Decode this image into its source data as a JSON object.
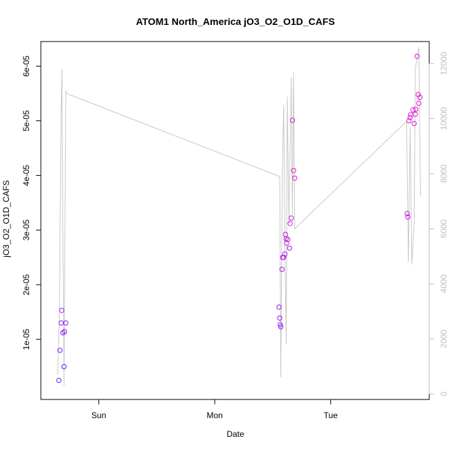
{
  "chart_data": {
    "type": "scatter",
    "title": "ATOM1 North_America jO3_O2_O1D_CAFS",
    "xlabel": "Date",
    "ylabel": "jO3_O2_O1D_CAFS",
    "x_unit": "days since Sat 00:00",
    "x_ticks": [
      {
        "label": "Sun",
        "x": 1.0
      },
      {
        "label": "Mon",
        "x": 2.0
      },
      {
        "label": "Tue",
        "x": 3.0
      }
    ],
    "xlim": [
      0.5,
      3.85
    ],
    "ylim": [
      -1e-06,
      6.45e-05
    ],
    "y_ticks": [
      {
        "label": "1e-05",
        "value": 1e-05
      },
      {
        "label": "2e-05",
        "value": 2e-05
      },
      {
        "label": "3e-05",
        "value": 3e-05
      },
      {
        "label": "4e-05",
        "value": 4e-05
      },
      {
        "label": "5e-05",
        "value": 5e-05
      },
      {
        "label": "6e-05",
        "value": 6e-05
      }
    ],
    "y2lim": [
      -200,
      12800
    ],
    "y2_ticks": [
      {
        "label": "0",
        "value": 0
      },
      {
        "label": "2000",
        "value": 2000
      },
      {
        "label": "4000",
        "value": 4000
      },
      {
        "label": "6000",
        "value": 6000
      },
      {
        "label": "8000",
        "value": 8000
      },
      {
        "label": "10000",
        "value": 10000
      },
      {
        "label": "12000",
        "value": 12000
      }
    ],
    "grid": false,
    "colors": {
      "points_low": "#6a1fff",
      "points_high": "#e014d0",
      "altitude_line": "#c8c8c8",
      "axis": "#000000",
      "right_axis": "#bebebe"
    },
    "series": [
      {
        "axis": "left",
        "style": "points",
        "points": [
          {
            "x": 0.655,
            "y": 2.5e-06
          },
          {
            "x": 0.665,
            "y": 8e-06
          },
          {
            "x": 0.675,
            "y": 1.3e-05
          },
          {
            "x": 0.68,
            "y": 1.53e-05
          },
          {
            "x": 0.69,
            "y": 1.12e-05
          },
          {
            "x": 0.7,
            "y": 5e-06
          },
          {
            "x": 0.705,
            "y": 1.14e-05
          },
          {
            "x": 0.715,
            "y": 1.3e-05
          },
          {
            "x": 2.555,
            "y": 1.59e-05
          },
          {
            "x": 2.56,
            "y": 1.39e-05
          },
          {
            "x": 2.565,
            "y": 1.27e-05
          },
          {
            "x": 2.57,
            "y": 1.23e-05
          },
          {
            "x": 2.58,
            "y": 2.28e-05
          },
          {
            "x": 2.585,
            "y": 2.5e-05
          },
          {
            "x": 2.595,
            "y": 2.5e-05
          },
          {
            "x": 2.605,
            "y": 2.56e-05
          },
          {
            "x": 2.61,
            "y": 2.92e-05
          },
          {
            "x": 2.615,
            "y": 2.84e-05
          },
          {
            "x": 2.62,
            "y": 2.76e-05
          },
          {
            "x": 2.63,
            "y": 2.83e-05
          },
          {
            "x": 2.645,
            "y": 2.67e-05
          },
          {
            "x": 2.65,
            "y": 3.12e-05
          },
          {
            "x": 2.66,
            "y": 3.22e-05
          },
          {
            "x": 2.67,
            "y": 5.01e-05
          },
          {
            "x": 2.68,
            "y": 4.09e-05
          },
          {
            "x": 2.69,
            "y": 3.95e-05
          },
          {
            "x": 3.66,
            "y": 3.3e-05
          },
          {
            "x": 3.665,
            "y": 3.24e-05
          },
          {
            "x": 3.675,
            "y": 5e-05
          },
          {
            "x": 3.685,
            "y": 5.06e-05
          },
          {
            "x": 3.69,
            "y": 5.11e-05
          },
          {
            "x": 3.71,
            "y": 5.2e-05
          },
          {
            "x": 3.72,
            "y": 4.95e-05
          },
          {
            "x": 3.73,
            "y": 5.12e-05
          },
          {
            "x": 3.735,
            "y": 5.21e-05
          },
          {
            "x": 3.745,
            "y": 6.18e-05
          },
          {
            "x": 3.755,
            "y": 5.48e-05
          },
          {
            "x": 3.76,
            "y": 5.32e-05
          },
          {
            "x": 3.77,
            "y": 5.43e-05
          }
        ]
      },
      {
        "axis": "right",
        "style": "line",
        "points": [
          {
            "x": 0.645,
            "y": 700
          },
          {
            "x": 0.66,
            "y": 3000
          },
          {
            "x": 0.675,
            "y": 10200
          },
          {
            "x": 0.682,
            "y": 11800
          },
          {
            "x": 0.69,
            "y": 6000
          },
          {
            "x": 0.7,
            "y": 300
          },
          {
            "x": 0.715,
            "y": 11000
          },
          {
            "x": 0.73,
            "y": 10900
          },
          {
            "x": 2.56,
            "y": 7900
          },
          {
            "x": 2.57,
            "y": 600
          },
          {
            "x": 2.582,
            "y": 8000
          },
          {
            "x": 2.595,
            "y": 10500
          },
          {
            "x": 2.605,
            "y": 5200
          },
          {
            "x": 2.617,
            "y": 1800
          },
          {
            "x": 2.625,
            "y": 10800
          },
          {
            "x": 2.64,
            "y": 6200
          },
          {
            "x": 2.66,
            "y": 11500
          },
          {
            "x": 2.67,
            "y": 6500
          },
          {
            "x": 2.68,
            "y": 11700
          },
          {
            "x": 2.69,
            "y": 6000
          },
          {
            "x": 3.655,
            "y": 9900
          },
          {
            "x": 3.67,
            "y": 4800
          },
          {
            "x": 3.685,
            "y": 9700
          },
          {
            "x": 3.7,
            "y": 4700
          },
          {
            "x": 3.72,
            "y": 6200
          },
          {
            "x": 3.73,
            "y": 11800
          },
          {
            "x": 3.76,
            "y": 12600
          },
          {
            "x": 3.775,
            "y": 7200
          }
        ]
      }
    ]
  }
}
